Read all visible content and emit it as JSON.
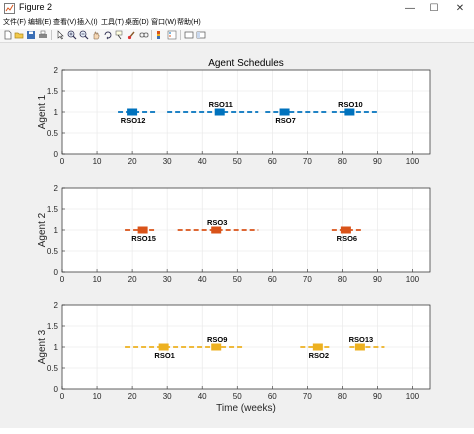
{
  "window": {
    "title": "Figure 2",
    "minimize_glyph": "—",
    "maximize_glyph": "☐",
    "close_glyph": "✕"
  },
  "menu": {
    "items": [
      "文件(F)",
      "编辑(E)",
      "查看(V)",
      "插入(I)",
      "工具(T)",
      "桌面(D)",
      "窗口(W)",
      "帮助(H)"
    ]
  },
  "toolbar": {
    "icons": [
      "new-figure-icon",
      "open-file-icon",
      "save-icon",
      "print-icon",
      "pointer-icon",
      "zoom-in-icon",
      "zoom-out-icon",
      "pan-icon",
      "rotate-3d-icon",
      "data-cursor-icon",
      "brush-icon",
      "link-icon",
      "colorbar-icon",
      "legend-icon",
      "hide-plot-tools-icon",
      "show-plot-tools-icon"
    ]
  },
  "colors": {
    "agent1": "#0072bd",
    "agent2": "#d95319",
    "agent3": "#edb120",
    "figure_bg": "#f0f0f0",
    "axes_bg": "#ffffff",
    "grid": "#e6e6e6",
    "axis": "#262626"
  },
  "chart_data": [
    {
      "type": "line",
      "title": "Agent Schedules",
      "ylabel": "Agent 1",
      "xlabel": "",
      "xlim": [
        0,
        105
      ],
      "ylim": [
        0,
        2
      ],
      "xticks": [
        "0",
        "10",
        "20",
        "30",
        "40",
        "50",
        "60",
        "70",
        "80",
        "90",
        "100"
      ],
      "yticks": [
        "0",
        "0.5",
        "1",
        "1.5",
        "2"
      ],
      "grid": true,
      "segments": [
        [
          16,
          27
        ],
        [
          30,
          56
        ],
        [
          58,
          76
        ],
        [
          77,
          90
        ]
      ],
      "tasks": [
        {
          "label": "RSO12",
          "x": 20,
          "y": 1,
          "label_side": "below"
        },
        {
          "label": "RSO11",
          "x": 45,
          "y": 1,
          "label_side": "above"
        },
        {
          "label": "RSO7",
          "x": 63.5,
          "y": 1,
          "label_side": "below"
        },
        {
          "label": "RSO10",
          "x": 82,
          "y": 1,
          "label_side": "above"
        }
      ]
    },
    {
      "type": "line",
      "title": "",
      "ylabel": "Agent 2",
      "xlabel": "",
      "xlim": [
        0,
        105
      ],
      "ylim": [
        0,
        2
      ],
      "xticks": [
        "0",
        "10",
        "20",
        "30",
        "40",
        "50",
        "60",
        "70",
        "80",
        "90",
        "100"
      ],
      "yticks": [
        "0",
        "0.5",
        "1",
        "1.5",
        "2"
      ],
      "grid": true,
      "segments": [
        [
          18,
          27
        ],
        [
          33,
          56
        ],
        [
          77,
          86
        ]
      ],
      "tasks": [
        {
          "label": "RSO15",
          "x": 23,
          "y": 1,
          "label_side": "below"
        },
        {
          "label": "RSO3",
          "x": 44,
          "y": 1,
          "label_side": "above"
        },
        {
          "label": "RSO6",
          "x": 81,
          "y": 1,
          "label_side": "below"
        }
      ]
    },
    {
      "type": "line",
      "title": "",
      "ylabel": "Agent 3",
      "xlabel": "Time (weeks)",
      "xlim": [
        0,
        105
      ],
      "ylim": [
        0,
        2
      ],
      "xticks": [
        "0",
        "10",
        "20",
        "30",
        "40",
        "50",
        "60",
        "70",
        "80",
        "90",
        "100"
      ],
      "yticks": [
        "0",
        "0.5",
        "1",
        "1.5",
        "2"
      ],
      "grid": true,
      "segments": [
        [
          18,
          52
        ],
        [
          68,
          77
        ],
        [
          82,
          92
        ]
      ],
      "tasks": [
        {
          "label": "RSO1",
          "x": 29,
          "y": 1,
          "label_side": "below"
        },
        {
          "label": "RSO9",
          "x": 44,
          "y": 1,
          "label_side": "above"
        },
        {
          "label": "RSO2",
          "x": 73,
          "y": 1,
          "label_side": "below"
        },
        {
          "label": "RSO13",
          "x": 85,
          "y": 1,
          "label_side": "above"
        }
      ]
    }
  ]
}
